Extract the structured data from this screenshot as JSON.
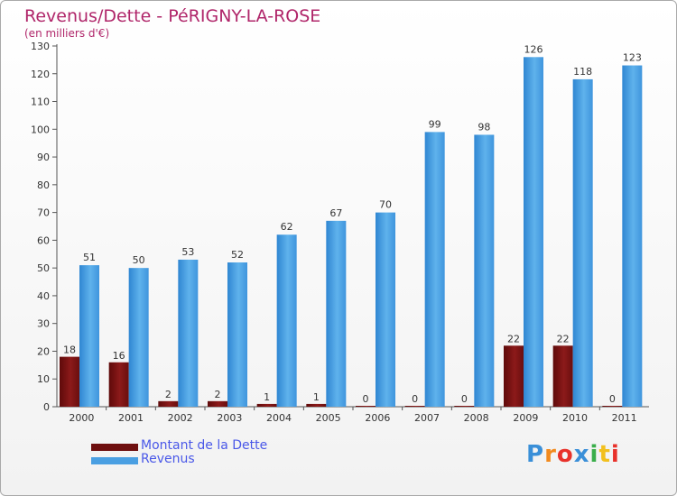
{
  "header": {
    "title": "Revenus/Dette - PéRIGNY-LA-ROSE",
    "subtitle": "(en milliers d'€)"
  },
  "legend": {
    "dette": "Montant de la Dette",
    "revenus": "Revenus"
  },
  "logo": {
    "text": "Proxiti",
    "letters": [
      "P",
      "r",
      "o",
      "x",
      "i",
      "t",
      "i"
    ],
    "colors": [
      "#3a8fd8",
      "#f28a1e",
      "#e8312a",
      "#3a8fd8",
      "#3aae4a",
      "#f2c01e",
      "#e8312a"
    ]
  },
  "colors": {
    "dette": "#7a1212",
    "revenus": "#4a9fe2",
    "title": "#b0266a",
    "legend_text": "#4a58e8"
  },
  "chart_data": {
    "type": "bar",
    "title": "Revenus/Dette - PéRIGNY-LA-ROSE",
    "subtitle": "(en milliers d'€)",
    "categories": [
      "2000",
      "2001",
      "2002",
      "2003",
      "2004",
      "2005",
      "2006",
      "2007",
      "2008",
      "2009",
      "2010",
      "2011"
    ],
    "series": [
      {
        "name": "Montant de la Dette",
        "values": [
          18,
          16,
          2,
          2,
          1,
          1,
          0,
          0,
          0,
          22,
          22,
          0
        ]
      },
      {
        "name": "Revenus",
        "values": [
          51,
          50,
          53,
          52,
          62,
          67,
          70,
          99,
          98,
          126,
          118,
          123
        ]
      }
    ],
    "dette_labels": [
      "18",
      "16",
      "2",
      "2",
      "1",
      "1",
      "0",
      "0",
      "0",
      "22",
      "22",
      "0"
    ],
    "yticks": [
      0,
      10,
      20,
      30,
      40,
      50,
      60,
      70,
      80,
      90,
      100,
      110,
      120,
      130
    ],
    "ylim": [
      0,
      130
    ],
    "grid": false,
    "legend_position": "bottom-left"
  }
}
